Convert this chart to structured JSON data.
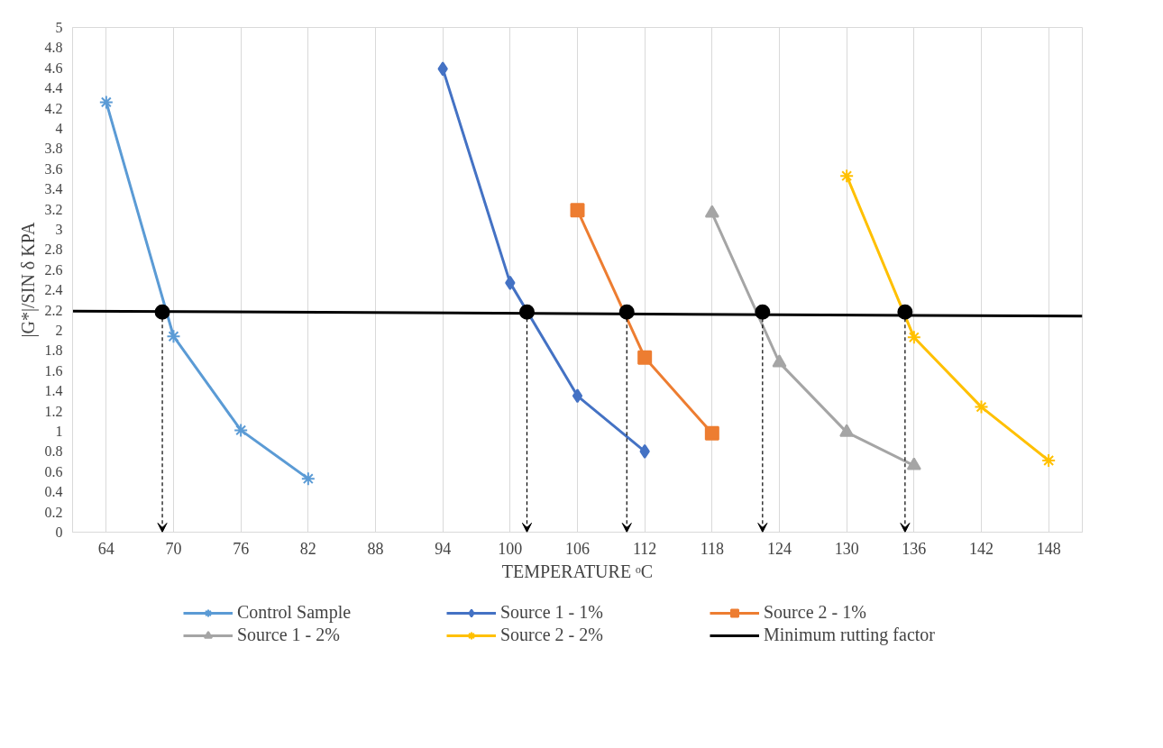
{
  "chart_data": {
    "type": "line",
    "xlabel": "TEMPERATURE ᵒC",
    "ylabel": "|G*|/SIN δ KPA",
    "xlim": [
      61,
      151
    ],
    "xticks": [
      64,
      70,
      76,
      82,
      88,
      94,
      100,
      106,
      112,
      118,
      124,
      130,
      136,
      142,
      148
    ],
    "ylim": [
      0,
      5
    ],
    "yticks": [
      0,
      0.2,
      0.4,
      0.6,
      0.8,
      1,
      1.2,
      1.4,
      1.6,
      1.8,
      2,
      2.2,
      2.4,
      2.6,
      2.8,
      3,
      3.2,
      3.4,
      3.6,
      3.8,
      4,
      4.2,
      4.4,
      4.6,
      4.8,
      5
    ],
    "grid": "x",
    "legend": "bottom",
    "series": [
      {
        "name": "Control Sample",
        "color": "#5b9bd5",
        "marker": "cross",
        "x": [
          64,
          70,
          76,
          82
        ],
        "values": [
          4.26,
          1.94,
          1.01,
          0.53
        ]
      },
      {
        "name": "Source 1 - 1%",
        "color": "#4472c4",
        "marker": "diamond",
        "x": [
          94,
          100,
          106,
          112
        ],
        "values": [
          4.59,
          2.47,
          1.35,
          0.8
        ]
      },
      {
        "name": "Source 2 - 1%",
        "color": "#ed7d31",
        "marker": "square",
        "x": [
          106,
          112,
          118
        ],
        "values": [
          3.19,
          1.73,
          0.98
        ]
      },
      {
        "name": "Source 1 - 2%",
        "color": "#a5a5a5",
        "marker": "triangle",
        "x": [
          118,
          124,
          130,
          136
        ],
        "values": [
          3.16,
          1.68,
          0.99,
          0.66
        ]
      },
      {
        "name": "Source 2 - 2%",
        "color": "#ffc000",
        "marker": "cross",
        "x": [
          130,
          136,
          142,
          148
        ],
        "values": [
          3.53,
          1.93,
          1.24,
          0.71
        ]
      },
      {
        "name": "Minimum rutting factor",
        "color": "#000000",
        "marker": "none",
        "x": [
          61,
          151
        ],
        "values": [
          2.19,
          2.14
        ]
      },
      {
        "type": "scatter",
        "color": "#000000",
        "marker": "circle",
        "x": [
          69,
          101.5,
          110.4,
          122.5,
          135.2
        ],
        "values": [
          2.18,
          2.18,
          2.18,
          2.18,
          2.18
        ]
      }
    ]
  }
}
